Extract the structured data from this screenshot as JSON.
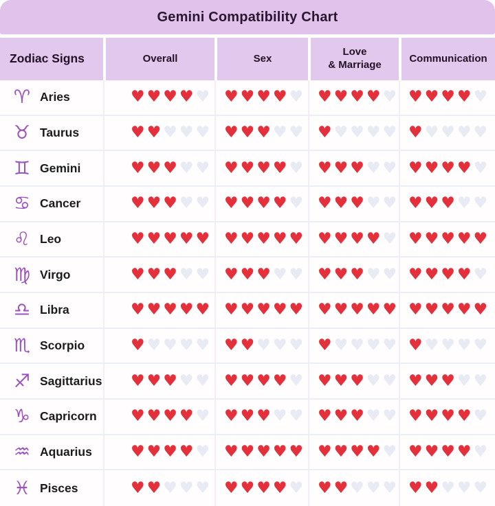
{
  "title": "Gemini Compatibility Chart",
  "columns": [
    "Zodiac Signs",
    "Overall",
    "Sex",
    "Love\n& Marriage",
    "Communication"
  ],
  "rating_scale": {
    "max": 5,
    "filled_symbol": "red-heart",
    "empty_symbol": "faded-heart"
  },
  "colors": {
    "title_band_bg": "#e0c2ea",
    "header_row_bg": "#e3c8ee",
    "heart_filled": "#e4303b",
    "heart_empty": "#e8eaf4",
    "zodiac_icon": "#9b52c0",
    "title_text": "#2a1630"
  },
  "rows": [
    {
      "sign": "Aries",
      "glyph": "♈",
      "ratings": [
        4,
        4,
        4,
        4
      ]
    },
    {
      "sign": "Taurus",
      "glyph": "♉",
      "ratings": [
        2,
        3,
        1,
        1
      ]
    },
    {
      "sign": "Gemini",
      "glyph": "♊",
      "ratings": [
        3,
        4,
        3,
        4
      ]
    },
    {
      "sign": "Cancer",
      "glyph": "♋",
      "ratings": [
        3,
        4,
        3,
        3
      ]
    },
    {
      "sign": "Leo",
      "glyph": "♌",
      "ratings": [
        5,
        5,
        4,
        5
      ]
    },
    {
      "sign": "Virgo",
      "glyph": "♍",
      "ratings": [
        3,
        3,
        3,
        4
      ]
    },
    {
      "sign": "Libra",
      "glyph": "♎",
      "ratings": [
        5,
        5,
        5,
        5
      ]
    },
    {
      "sign": "Scorpio",
      "glyph": "♏",
      "ratings": [
        1,
        2,
        1,
        1
      ]
    },
    {
      "sign": "Sagittarius",
      "glyph": "♐",
      "ratings": [
        3,
        4,
        3,
        3
      ]
    },
    {
      "sign": "Capricorn",
      "glyph": "♑",
      "ratings": [
        4,
        3,
        3,
        4
      ]
    },
    {
      "sign": "Aquarius",
      "glyph": "♒",
      "ratings": [
        4,
        5,
        4,
        4
      ]
    },
    {
      "sign": "Pisces",
      "glyph": "♓",
      "ratings": [
        2,
        4,
        2,
        2
      ]
    }
  ],
  "chart_data": {
    "type": "table",
    "title": "Gemini Compatibility Chart",
    "columns": [
      "Zodiac Signs",
      "Overall",
      "Sex",
      "Love & Marriage",
      "Communication"
    ],
    "unit": "hearts out of 5",
    "rows": [
      [
        "Aries",
        4,
        4,
        4,
        4
      ],
      [
        "Taurus",
        2,
        3,
        1,
        1
      ],
      [
        "Gemini",
        3,
        4,
        3,
        4
      ],
      [
        "Cancer",
        3,
        4,
        3,
        3
      ],
      [
        "Leo",
        5,
        5,
        4,
        5
      ],
      [
        "Virgo",
        3,
        3,
        3,
        4
      ],
      [
        "Libra",
        5,
        5,
        5,
        5
      ],
      [
        "Scorpio",
        1,
        2,
        1,
        1
      ],
      [
        "Sagittarius",
        3,
        4,
        3,
        3
      ],
      [
        "Capricorn",
        4,
        3,
        3,
        4
      ],
      [
        "Aquarius",
        4,
        5,
        4,
        4
      ],
      [
        "Pisces",
        2,
        4,
        2,
        2
      ]
    ]
  }
}
